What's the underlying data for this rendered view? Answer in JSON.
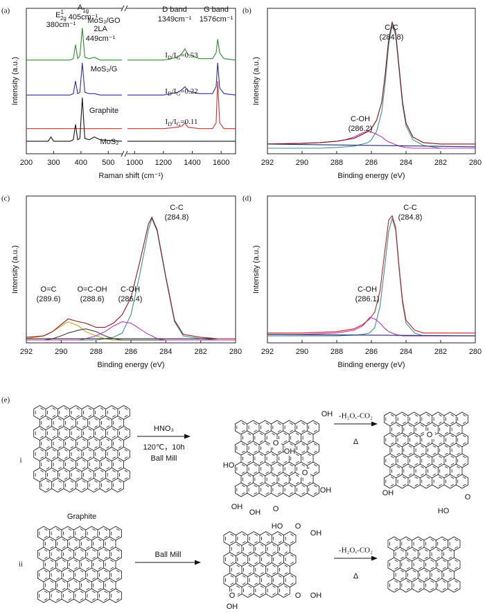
{
  "chart_data": [
    {
      "type": "line",
      "panel_label": "(a)",
      "xlabel": "Raman shift (cm⁻¹)",
      "ylabel": "Intensity (a.u.)",
      "xlim": [
        200,
        1700
      ],
      "xbreak": [
        550,
        950
      ],
      "ylim": [
        0,
        100
      ],
      "xticks": [
        200,
        300,
        400,
        500,
        1000,
        1200,
        1400,
        1600
      ],
      "x": [
        200,
        280,
        290,
        300,
        360,
        372,
        380,
        388,
        396,
        405,
        414,
        430,
        449,
        470,
        550,
        950,
        1200,
        1300,
        1330,
        1349,
        1370,
        1450,
        1540,
        1565,
        1576,
        1590,
        1620,
        1700
      ],
      "series": [
        {
          "name": "MoS₂/GO",
          "color": "#2e8b2e",
          "values": [
            65,
            65,
            65,
            65,
            65,
            66,
            76,
            66,
            68,
            88,
            67,
            66,
            67,
            65,
            65,
            65,
            65,
            67,
            70,
            73,
            69,
            66,
            66,
            70,
            80,
            70,
            66,
            65
          ]
        },
        {
          "name": "MoS₂/G",
          "color": "#2b2b9a",
          "values": [
            40,
            40,
            40,
            40,
            40,
            41,
            50,
            41,
            42,
            63,
            42,
            41,
            41,
            40,
            40,
            40,
            40,
            42,
            44,
            46,
            43,
            41,
            41,
            46,
            63,
            45,
            41,
            40
          ]
        },
        {
          "name": "Graphite",
          "color": "#c83232",
          "values": [
            16,
            16,
            16,
            16,
            16,
            16,
            16,
            16,
            16,
            16,
            16,
            16,
            16,
            16,
            16,
            16,
            16,
            17,
            18,
            20,
            17,
            16,
            16,
            20,
            50,
            20,
            16,
            16
          ]
        },
        {
          "name": "MoS₂",
          "color": "#111111",
          "values": [
            7,
            7,
            10,
            7,
            7,
            8,
            19,
            8,
            9,
            38,
            9,
            8,
            10,
            8,
            7,
            7,
            7,
            7,
            7,
            7,
            7,
            7,
            7,
            7,
            7,
            7,
            7,
            7
          ]
        }
      ],
      "annotations": [
        {
          "lines": [
            [
              {
                "text": "E"
              },
              {
                "sup": "1"
              },
              {
                "sub": "2g"
              }
            ],
            [
              {
                "text": "380cm⁻¹"
              }
            ]
          ]
        },
        {
          "lines": [
            [
              {
                "text": "A"
              },
              {
                "sub": "1g"
              }
            ],
            [
              {
                "text": "405cm⁻¹"
              }
            ]
          ]
        },
        {
          "lines": [
            [
              {
                "text": "2LA"
              }
            ],
            [
              {
                "text": "449cm⁻¹"
              }
            ]
          ]
        },
        {
          "lines": [
            [
              {
                "text": "D band"
              }
            ],
            [
              {
                "text": "1349cm⁻¹"
              }
            ]
          ]
        },
        {
          "lines": [
            [
              {
                "text": "G band"
              }
            ],
            [
              {
                "text": "1576cm⁻¹"
              }
            ]
          ]
        },
        {
          "lines": [
            [
              {
                "text": "I"
              },
              {
                "sub": "D"
              },
              {
                "text": "/I"
              },
              {
                "sub": "G"
              },
              {
                "text": "=0.53"
              }
            ]
          ]
        },
        {
          "lines": [
            [
              {
                "text": "I"
              },
              {
                "sub": "D"
              },
              {
                "text": "/I"
              },
              {
                "sub": "G"
              },
              {
                "text": "=0.22"
              }
            ]
          ]
        },
        {
          "lines": [
            [
              {
                "text": "I"
              },
              {
                "sub": "D"
              },
              {
                "text": "/I"
              },
              {
                "sub": "G"
              },
              {
                "text": "=0.11"
              }
            ]
          ]
        }
      ]
    },
    {
      "type": "line",
      "panel_label": "(b)",
      "xlabel": "Binding energy (eV)",
      "ylabel": "Intensity (a.u.)",
      "xlim": [
        292,
        280
      ],
      "ylim": [
        0,
        100
      ],
      "xticks": [
        292,
        290,
        288,
        286,
        284,
        282,
        280
      ],
      "x": [
        292,
        290,
        289,
        288,
        287.5,
        287,
        286.5,
        286.2,
        286,
        285.7,
        285.4,
        285.2,
        285,
        284.8,
        284.6,
        284.4,
        284.2,
        284,
        283.6,
        283,
        282,
        281,
        280
      ],
      "series": [
        {
          "color": "#3a8f8f",
          "values": [
            2,
            2,
            2,
            2.5,
            3,
            3.5,
            5,
            6,
            8,
            14,
            28,
            49,
            76,
            90,
            83,
            58,
            33,
            18,
            8,
            4,
            2,
            2,
            2
          ]
        },
        {
          "color": "#c030c0",
          "values": [
            5,
            5.5,
            6,
            7,
            8,
            10,
            13,
            14,
            13.5,
            12,
            10,
            8,
            6.5,
            5.5,
            4.5,
            3.5,
            3,
            2.5,
            2,
            2,
            2,
            2,
            2
          ]
        },
        {
          "color": "#1f2a6b",
          "x": [
            292,
            286,
            280
          ],
          "values": [
            5,
            4,
            3
          ]
        },
        {
          "color": "#7a1010",
          "values": [
            5,
            5.5,
            6,
            7,
            8,
            9,
            12,
            14,
            16,
            22,
            35,
            55,
            80,
            92,
            85,
            60,
            35,
            20,
            10,
            6,
            5,
            5,
            5
          ]
        }
      ],
      "annotations": [
        {
          "lines": [
            [
              {
                "text": "C-C"
              }
            ],
            [
              {
                "text": "(284.8)"
              }
            ]
          ]
        },
        {
          "lines": [
            [
              {
                "text": "C-OH"
              }
            ],
            [
              {
                "text": "(286.2)"
              }
            ]
          ]
        }
      ]
    },
    {
      "type": "line",
      "panel_label": "(c)",
      "xlabel": "Binding energy (eV)",
      "ylabel": "Intensity (a.u.)",
      "xlim": [
        292,
        280
      ],
      "ylim": [
        0,
        100
      ],
      "xticks": [
        292,
        290,
        288,
        286,
        284,
        282,
        280
      ],
      "x": [
        292,
        291,
        290.5,
        290,
        289.6,
        289,
        288.6,
        288,
        287.5,
        287,
        286.5,
        286,
        285.5,
        285,
        284.8,
        284.5,
        284,
        283.5,
        283,
        282,
        281,
        280
      ],
      "series": [
        {
          "color": "#3a8f8f",
          "values": [
            0,
            0,
            0,
            0,
            0,
            0,
            0,
            0,
            1,
            2,
            5,
            18,
            46,
            78,
            86,
            77,
            44,
            13,
            3,
            1,
            0,
            0
          ]
        },
        {
          "color": "#d4a020",
          "values": [
            1,
            3,
            6,
            10,
            13,
            10,
            6,
            3,
            1,
            0,
            0,
            0,
            0,
            0,
            0,
            0,
            0,
            0,
            0,
            0,
            0,
            0
          ]
        },
        {
          "color": "#404040",
          "values": [
            0,
            0,
            1,
            3,
            5,
            7,
            8,
            6,
            3,
            1,
            0,
            0,
            0,
            0,
            0,
            0,
            0,
            0,
            0,
            0,
            0,
            0
          ]
        },
        {
          "color": "#c030c0",
          "values": [
            0,
            0,
            0,
            0,
            0,
            0,
            1,
            3,
            6,
            10,
            13,
            12,
            8,
            4,
            3,
            1,
            0,
            0,
            0,
            0,
            0,
            0
          ]
        },
        {
          "color": "#111111",
          "x": [
            292,
            280
          ],
          "values": [
            1,
            1
          ]
        },
        {
          "color": "#8b1a1a",
          "values": [
            2,
            3,
            6,
            11,
            15,
            13,
            12,
            9,
            9,
            12,
            18,
            30,
            55,
            82,
            87,
            78,
            45,
            14,
            4,
            2,
            1,
            1
          ]
        }
      ],
      "annotations": [
        {
          "lines": [
            [
              {
                "text": "C-C"
              }
            ],
            [
              {
                "text": "(284.8)"
              }
            ]
          ]
        },
        {
          "lines": [
            [
              {
                "text": "O=C"
              }
            ],
            [
              {
                "text": "(289.6)"
              }
            ]
          ]
        },
        {
          "lines": [
            [
              {
                "text": "O=C-OH"
              }
            ],
            [
              {
                "text": "(288.6)"
              }
            ]
          ]
        },
        {
          "lines": [
            [
              {
                "text": "C-OH"
              }
            ],
            [
              {
                "text": "(286.4)"
              }
            ]
          ]
        }
      ]
    },
    {
      "type": "line",
      "panel_label": "(d)",
      "xlabel": "Binding energy (eV)",
      "ylabel": "Intensity (a.u.)",
      "xlim": [
        292,
        280
      ],
      "ylim": [
        0,
        100
      ],
      "xticks": [
        292,
        290,
        288,
        286,
        284,
        282,
        280
      ],
      "x": [
        292,
        290,
        288,
        287,
        286.5,
        286.1,
        285.8,
        285.5,
        285.2,
        285,
        284.8,
        284.6,
        284.4,
        284.2,
        284,
        283.5,
        283,
        282,
        280
      ],
      "series": [
        {
          "color": "#3a8f8f",
          "values": [
            3,
            3,
            3,
            3.5,
            4,
            5,
            9,
            24,
            55,
            77,
            86,
            78,
            50,
            26,
            12,
            5,
            3,
            3,
            3
          ]
        },
        {
          "color": "#c030c0",
          "values": [
            4,
            4,
            5,
            7,
            10,
            16,
            15,
            12,
            8,
            6,
            5,
            4,
            3.5,
            3,
            3,
            3,
            3,
            3,
            3
          ]
        },
        {
          "color": "#1f2a6b",
          "x": [
            292,
            280
          ],
          "values": [
            4,
            3
          ]
        },
        {
          "color": "#c02020",
          "values": [
            5,
            5,
            6,
            8,
            11,
            15,
            20,
            35,
            65,
            85,
            88,
            80,
            52,
            28,
            14,
            7,
            5,
            5,
            5
          ]
        }
      ],
      "annotations": [
        {
          "lines": [
            [
              {
                "text": "C-C"
              }
            ],
            [
              {
                "text": "(284.8)"
              }
            ]
          ]
        },
        {
          "lines": [
            [
              {
                "text": "C-OH"
              }
            ],
            [
              {
                "text": "(286.1)"
              }
            ]
          ]
        }
      ]
    }
  ],
  "scheme": {
    "label": "(e)",
    "rows": [
      {
        "label": "i",
        "arrows": [
          {
            "above": "HNO₃",
            "below": [
              "120℃，10h",
              "Ball Mill"
            ]
          },
          {
            "above": "-H₂O,-CO₂",
            "below": [
              "Δ"
            ]
          }
        ],
        "structures": [
          {
            "caption": "Graphite"
          },
          {
            "groups": [
              "OH",
              "O",
              "OH",
              "HO",
              "O",
              "OH",
              "OH",
              "OH",
              "O",
              "HO",
              "O"
            ]
          },
          {
            "groups": [
              "O",
              "OH",
              "HO",
              "O"
            ]
          }
        ]
      },
      {
        "label": "ii",
        "arrows": [
          {
            "above": "Ball Mill"
          },
          {
            "above": "-H₂O,-CO₂",
            "below": [
              "Δ"
            ]
          }
        ],
        "structures": [
          {},
          {
            "groups": [
              "O",
              "OH",
              "O",
              "OH",
              "O",
              "OH"
            ]
          },
          {}
        ]
      }
    ]
  }
}
